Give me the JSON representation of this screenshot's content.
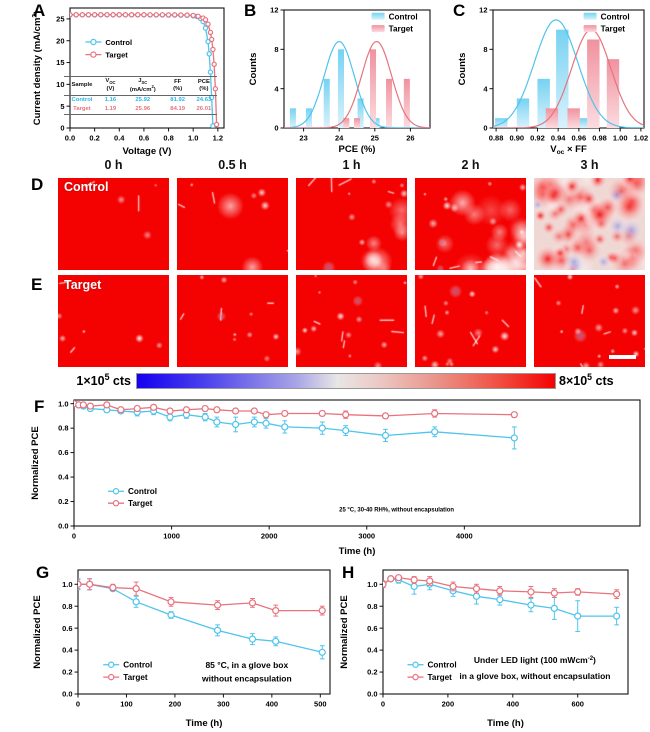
{
  "colors": {
    "control": "#4FC4ED",
    "target": "#E8737E",
    "control_fill": "#76D2F2",
    "control_fill_light": "#D9F2FC",
    "target_fill": "#F0929F",
    "target_fill_light": "#FBDCE0",
    "heat_red": "#F40202",
    "axis": "#111111"
  },
  "panels": {
    "A": {
      "label": "A"
    },
    "B": {
      "label": "B"
    },
    "C": {
      "label": "C"
    },
    "D": {
      "label": "D"
    },
    "E": {
      "label": "E"
    },
    "F": {
      "label": "F"
    },
    "G": {
      "label": "G"
    },
    "H": {
      "label": "H"
    }
  },
  "jv_table": {
    "headers": [
      [
        "Sample"
      ],
      [
        "V~OC~",
        "(V)"
      ],
      [
        "J~SC~",
        "(mA/cm^2^)"
      ],
      [
        "FF",
        "(%)"
      ],
      [
        "PCE",
        "(%)"
      ]
    ],
    "rows": [
      {
        "sample": "Control",
        "values": [
          "1.16",
          "25.92",
          "81.92",
          "24.63"
        ],
        "color": "#29B6E8"
      },
      {
        "sample": "Target",
        "values": [
          "1.19",
          "25.96",
          "84.19",
          "26.01"
        ],
        "color": "#E8737E"
      }
    ]
  },
  "row_d": {
    "tag": "Control",
    "times": [
      "0 h",
      "0.5 h",
      "1 h",
      "2 h",
      "3 h"
    ],
    "frames": [
      {
        "seed": 1,
        "spots": 3,
        "veins": 2,
        "mottle": 0,
        "blue": 0,
        "bias": "top"
      },
      {
        "seed": 2,
        "spots": 4,
        "veins": 3,
        "mottle": 0.04,
        "blue": 0,
        "bias": "top"
      },
      {
        "seed": 3,
        "spots": 7,
        "veins": 4,
        "mottle": 0.14,
        "blue": 1,
        "bias": "top"
      },
      {
        "seed": 4,
        "spots": 10,
        "veins": 5,
        "mottle": 0.5,
        "blue": 2,
        "bias": ""
      },
      {
        "seed": 5,
        "spots": 8,
        "veins": 0,
        "mottle": 0.95,
        "blue": 7,
        "bias": "",
        "invert": true
      }
    ]
  },
  "row_e": {
    "tag": "Target",
    "scale_bar": true,
    "frames": [
      {
        "seed": 11,
        "spots": 5,
        "veins": 2,
        "mottle": 0,
        "blue": 0
      },
      {
        "seed": 12,
        "spots": 8,
        "veins": 3,
        "mottle": 0,
        "blue": 1
      },
      {
        "seed": 13,
        "spots": 13,
        "veins": 5,
        "mottle": 0,
        "blue": 1
      },
      {
        "seed": 14,
        "spots": 14,
        "veins": 5,
        "mottle": 0,
        "blue": 1
      },
      {
        "seed": 15,
        "spots": 15,
        "veins": 5,
        "mottle": 0,
        "blue": 1
      }
    ]
  },
  "colorbar": {
    "left": "1×10^5^ cts",
    "right": "8×10^5^ cts",
    "stops": [
      "#1400F0 0%",
      "#4A40EC 16%",
      "#A8A4E6 38%",
      "#E8E6E6 48%",
      "#ECC8C4 58%",
      "#EA9288 72%",
      "#F05244 86%",
      "#F40202 100%"
    ]
  },
  "chart_data": [
    {
      "panel": "A",
      "type": "line",
      "mount": "chartA",
      "xlabel": "Voltage (V)",
      "ylabel": "Current density (mA/cm^2^)",
      "xlim": [
        0,
        1.25
      ],
      "ylim": [
        0,
        27.5
      ],
      "xticks": [
        0.0,
        0.2,
        0.4,
        0.6,
        0.8,
        1.0,
        1.2
      ],
      "xtick_labels": [
        "0.0",
        "0.2",
        "0.4",
        "0.6",
        "0.8",
        "1.0",
        "1.2"
      ],
      "yticks": [
        0,
        5,
        10,
        15,
        20,
        25
      ],
      "ytick_labels": [
        "0",
        "5",
        "10",
        "15",
        "20",
        "25"
      ],
      "marker_r": 2.1,
      "legend": {
        "x": 0.1,
        "y": 0.7,
        "dy": 0.105,
        "font": 7.5
      },
      "series": [
        {
          "name": "Control",
          "color": "#4FC4ED",
          "x": [
            0,
            0.05,
            0.1,
            0.15,
            0.2,
            0.25,
            0.3,
            0.35,
            0.4,
            0.45,
            0.5,
            0.55,
            0.6,
            0.65,
            0.7,
            0.75,
            0.8,
            0.85,
            0.9,
            0.95,
            1.0,
            1.03,
            1.06,
            1.08,
            1.1,
            1.12,
            1.13,
            1.14,
            1.15,
            1.16
          ],
          "y": [
            25.92,
            25.92,
            25.92,
            25.92,
            25.92,
            25.92,
            25.92,
            25.92,
            25.92,
            25.92,
            25.92,
            25.92,
            25.92,
            25.9,
            25.9,
            25.9,
            25.88,
            25.88,
            25.85,
            25.82,
            25.7,
            25.55,
            25.1,
            24.4,
            22.9,
            19.8,
            17.0,
            12.8,
            7.0,
            0.5
          ]
        },
        {
          "name": "Target",
          "color": "#E8737E",
          "x": [
            0,
            0.05,
            0.1,
            0.15,
            0.2,
            0.25,
            0.3,
            0.35,
            0.4,
            0.45,
            0.5,
            0.55,
            0.6,
            0.65,
            0.7,
            0.75,
            0.8,
            0.85,
            0.9,
            0.95,
            1.0,
            1.04,
            1.08,
            1.1,
            1.12,
            1.14,
            1.15,
            1.16,
            1.17,
            1.18,
            1.19
          ],
          "y": [
            25.96,
            25.96,
            25.96,
            25.96,
            25.96,
            25.96,
            25.96,
            25.96,
            25.96,
            25.96,
            25.96,
            25.96,
            25.96,
            25.95,
            25.95,
            25.95,
            25.93,
            25.93,
            25.9,
            25.88,
            25.8,
            25.6,
            25.2,
            24.8,
            23.8,
            21.9,
            20.3,
            18.0,
            14.6,
            9.0,
            0.8
          ]
        }
      ]
    },
    {
      "panel": "B",
      "type": "histogram",
      "mount": "chartB",
      "xlabel": "PCE (%)",
      "ylabel": "Counts",
      "xlim": [
        22.45,
        26.55
      ],
      "ylim": [
        0,
        12
      ],
      "xticks": [
        23,
        24,
        25,
        26
      ],
      "xtick_labels": [
        "23",
        "24",
        "25",
        "26"
      ],
      "yticks": [
        0,
        4,
        8,
        12
      ],
      "ytick_labels": [
        "0",
        "4",
        "8",
        "12"
      ],
      "bar_width": 0.17,
      "legend": {
        "x": 0.6,
        "y": 0.93,
        "dy": 0.105,
        "font": 8.2
      },
      "series": [
        {
          "name": "Control",
          "fill": "#76D2F2",
          "fill_light": "#D9F2FC",
          "centers": [
            22.7,
            23.15,
            23.65,
            24.05,
            24.6,
            25.05
          ],
          "counts": [
            2,
            2,
            5,
            8,
            3,
            1
          ]
        },
        {
          "name": "Target",
          "fill": "#F0929F",
          "fill_light": "#FBDCE0",
          "centers": [
            24.2,
            24.5,
            24.95,
            25.4,
            25.9
          ],
          "counts": [
            1,
            1,
            8,
            5,
            5
          ]
        }
      ],
      "curves": [
        {
          "mean": 24.0,
          "sigma": 0.42,
          "amp": 8.8,
          "color": "#4FC4ED"
        },
        {
          "mean": 25.05,
          "sigma": 0.42,
          "amp": 8.8,
          "color": "#E8737E"
        }
      ]
    },
    {
      "panel": "C",
      "type": "histogram",
      "mount": "chartC",
      "xlabel": "V~oc~ × FF",
      "ylabel": "Counts",
      "xlim": [
        0.877,
        1.023
      ],
      "ylim": [
        0,
        12
      ],
      "xticks": [
        0.88,
        0.9,
        0.92,
        0.94,
        0.96,
        0.98,
        1.0,
        1.02
      ],
      "xtick_labels": [
        "0.88",
        "0.90",
        "0.92",
        "0.94",
        "0.96",
        "0.98",
        "1.00",
        "1.02"
      ],
      "yticks": [
        0,
        4,
        8,
        12
      ],
      "ytick_labels": [
        "0",
        "4",
        "8",
        "12"
      ],
      "bar_width": 0.012,
      "legend": {
        "x": 0.6,
        "y": 0.93,
        "dy": 0.105,
        "font": 8.2
      },
      "series": [
        {
          "name": "Control",
          "fill": "#76D2F2",
          "fill_light": "#D9F2FC",
          "centers": [
            0.885,
            0.906,
            0.926,
            0.944,
            0.964
          ],
          "counts": [
            1,
            3,
            5,
            10,
            1
          ]
        },
        {
          "name": "Target",
          "fill": "#F0929F",
          "fill_light": "#FBDCE0",
          "centers": [
            0.934,
            0.955,
            0.974,
            0.993
          ],
          "counts": [
            2,
            2,
            9,
            7
          ]
        }
      ],
      "curves": [
        {
          "mean": 0.938,
          "sigma": 0.021,
          "amp": 11,
          "color": "#4FC4ED"
        },
        {
          "mean": 0.972,
          "sigma": 0.019,
          "amp": 10,
          "color": "#E8737E"
        }
      ]
    },
    {
      "panel": "F",
      "type": "line",
      "mount": "chartF",
      "xlabel": "Time (h)",
      "ylabel": "Normalized PCE",
      "xlim": [
        0,
        5800
      ],
      "ylim": [
        0,
        1.03
      ],
      "xticks": [
        0,
        1000,
        2000,
        3000,
        4000
      ],
      "xtick_labels": [
        "0",
        "1000",
        "2000",
        "3000",
        "4000"
      ],
      "yticks": [
        0.0,
        0.2,
        0.4,
        0.6,
        0.8,
        1.0
      ],
      "ytick_labels": [
        "0.0",
        "0.2",
        "0.4",
        "0.6",
        "0.8",
        "1.0"
      ],
      "marker_r": 3.0,
      "legend": {
        "x": 0.06,
        "y": 0.26,
        "dy": 0.095,
        "font": 8.2
      },
      "annotations": [
        {
          "x": 0.57,
          "y": 0.13,
          "text": "~25 °C, 30-40 RH%, without encapsulation",
          "anchor": "middle",
          "size": 8.5
        }
      ],
      "series": [
        {
          "name": "Control",
          "color": "#4FC4ED",
          "x": [
            0,
            48,
            96,
            168,
            336,
            480,
            648,
            816,
            984,
            1152,
            1344,
            1464,
            1656,
            1848,
            1968,
            2160,
            2544,
            2784,
            3192,
            3696,
            4512
          ],
          "y": [
            1.0,
            0.99,
            0.98,
            0.96,
            0.95,
            0.94,
            0.93,
            0.94,
            0.89,
            0.91,
            0.89,
            0.85,
            0.83,
            0.85,
            0.84,
            0.81,
            0.8,
            0.78,
            0.74,
            0.77,
            0.72
          ],
          "err": [
            0.01,
            0.01,
            0.02,
            0.02,
            0.02,
            0.02,
            0.03,
            0.03,
            0.03,
            0.03,
            0.03,
            0.04,
            0.06,
            0.04,
            0.04,
            0.05,
            0.05,
            0.04,
            0.05,
            0.04,
            0.09
          ]
        },
        {
          "name": "Target",
          "color": "#E8737E",
          "x": [
            0,
            48,
            96,
            168,
            336,
            480,
            648,
            816,
            984,
            1152,
            1344,
            1464,
            1656,
            1848,
            1968,
            2160,
            2544,
            2784,
            3192,
            3696,
            4512
          ],
          "y": [
            1.0,
            0.99,
            0.99,
            0.98,
            0.99,
            0.95,
            0.96,
            0.97,
            0.94,
            0.95,
            0.96,
            0.95,
            0.94,
            0.94,
            0.91,
            0.92,
            0.92,
            0.91,
            0.9,
            0.92,
            0.91
          ],
          "err": [
            0.01,
            0.01,
            0.01,
            0.02,
            0.02,
            0.02,
            0.02,
            0.02,
            0.02,
            0.02,
            0.02,
            0.02,
            0.02,
            0.02,
            0.02,
            0.02,
            0.02,
            0.03,
            0.02,
            0.03,
            0.02
          ]
        }
      ]
    },
    {
      "panel": "G",
      "type": "line",
      "mount": "chartG",
      "xlabel": "Time (h)",
      "ylabel": "Normalized PCE",
      "xlim": [
        0,
        520
      ],
      "ylim": [
        0,
        1.13
      ],
      "xticks": [
        0,
        100,
        200,
        300,
        400,
        500
      ],
      "xtick_labels": [
        "0",
        "100",
        "200",
        "300",
        "400",
        "500"
      ],
      "yticks": [
        0.0,
        0.2,
        0.4,
        0.6,
        0.8,
        1.0
      ],
      "ytick_labels": [
        "0.0",
        "0.2",
        "0.4",
        "0.6",
        "0.8",
        "1.0"
      ],
      "marker_r": 3.0,
      "legend": {
        "x": 0.1,
        "y": 0.22,
        "dy": 0.1,
        "font": 8.2
      },
      "annotations": [
        {
          "x": 0.67,
          "y": 0.21,
          "text": "85 °C, in a glove box",
          "anchor": "middle",
          "size": 8.5
        },
        {
          "x": 0.67,
          "y": 0.1,
          "text": "without encapsulation",
          "anchor": "middle",
          "size": 8.5
        }
      ],
      "series": [
        {
          "name": "Control",
          "color": "#4FC4ED",
          "x": [
            0,
            24,
            72,
            120,
            192,
            288,
            360,
            408,
            504
          ],
          "y": [
            1.0,
            1.0,
            0.96,
            0.84,
            0.72,
            0.58,
            0.5,
            0.48,
            0.38
          ],
          "err": [
            0.05,
            0.05,
            0.02,
            0.05,
            0.03,
            0.05,
            0.05,
            0.04,
            0.06
          ]
        },
        {
          "name": "Target",
          "color": "#E8737E",
          "x": [
            0,
            24,
            72,
            120,
            192,
            288,
            360,
            408,
            504
          ],
          "y": [
            1.0,
            1.0,
            0.97,
            0.96,
            0.84,
            0.81,
            0.83,
            0.76,
            0.76
          ],
          "err": [
            0.04,
            0.05,
            0.03,
            0.06,
            0.04,
            0.04,
            0.04,
            0.05,
            0.04
          ]
        }
      ]
    },
    {
      "panel": "H",
      "type": "line",
      "mount": "chartH",
      "xlabel": "Time (h)",
      "ylabel": "Normalized PCE",
      "xlim": [
        0,
        755
      ],
      "ylim": [
        0,
        1.13
      ],
      "xticks": [
        0,
        200,
        400,
        600
      ],
      "xtick_labels": [
        "0",
        "200",
        "400",
        "600"
      ],
      "yticks": [
        0.0,
        0.2,
        0.4,
        0.6,
        0.8,
        1.0
      ],
      "ytick_labels": [
        "0.0",
        "0.2",
        "0.4",
        "0.6",
        "0.8",
        "1.0"
      ],
      "marker_r": 3.0,
      "legend": {
        "x": 0.1,
        "y": 0.22,
        "dy": 0.1,
        "font": 8.2
      },
      "annotations": [
        {
          "x": 0.62,
          "y": 0.25,
          "text": "Under LED light (100 mWcm^-2^)",
          "anchor": "middle",
          "size": 8.5
        },
        {
          "x": 0.62,
          "y": 0.12,
          "text": "in a glove box, without encapsulation",
          "anchor": "middle",
          "size": 8.5
        }
      ],
      "series": [
        {
          "name": "Control",
          "color": "#4FC4ED",
          "x": [
            0,
            24,
            48,
            96,
            144,
            216,
            288,
            360,
            456,
            528,
            600,
            720
          ],
          "y": [
            1.0,
            1.05,
            1.04,
            0.98,
            1.0,
            0.94,
            0.89,
            0.86,
            0.81,
            0.78,
            0.71,
            0.71
          ],
          "err": [
            0.03,
            0.02,
            0.03,
            0.07,
            0.05,
            0.05,
            0.07,
            0.05,
            0.06,
            0.1,
            0.14,
            0.08
          ]
        },
        {
          "name": "Target",
          "color": "#E8737E",
          "x": [
            0,
            24,
            48,
            96,
            144,
            216,
            288,
            360,
            456,
            528,
            600,
            720
          ],
          "y": [
            1.0,
            1.05,
            1.06,
            1.04,
            1.03,
            0.98,
            0.96,
            0.94,
            0.93,
            0.92,
            0.93,
            0.91
          ],
          "err": [
            0.03,
            0.02,
            0.02,
            0.03,
            0.04,
            0.04,
            0.04,
            0.04,
            0.05,
            0.04,
            0.03,
            0.04
          ]
        }
      ]
    }
  ]
}
